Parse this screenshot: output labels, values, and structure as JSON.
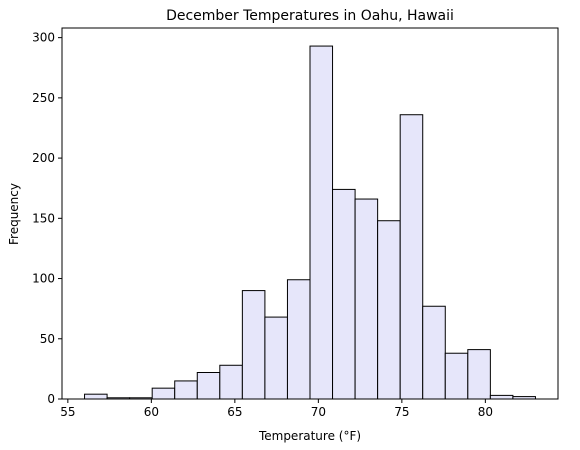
{
  "chart_data": {
    "type": "bar",
    "subtype": "histogram",
    "title": "December Temperatures in Oahu, Hawaii",
    "xlabel": "Temperature (°F)",
    "ylabel": "Frequency",
    "xlim": [
      54.65,
      84.35
    ],
    "ylim": [
      0,
      308
    ],
    "xticks": [
      55,
      60,
      65,
      70,
      75,
      80
    ],
    "yticks": [
      0,
      50,
      100,
      150,
      200,
      250,
      300
    ],
    "bin_edges": [
      56.0,
      57.35,
      58.7,
      60.05,
      61.4,
      62.75,
      64.1,
      65.45,
      66.8,
      68.15,
      69.5,
      70.85,
      72.2,
      73.55,
      74.9,
      76.25,
      77.6,
      78.95,
      80.3,
      81.65,
      83.0
    ],
    "values": [
      4,
      1,
      1,
      9,
      15,
      22,
      28,
      90,
      68,
      99,
      293,
      174,
      166,
      148,
      236,
      77,
      38,
      41,
      3,
      2
    ],
    "bar_fill": "#e6e6fa",
    "bar_edge": "#000000",
    "grid": false,
    "legend": "none"
  }
}
